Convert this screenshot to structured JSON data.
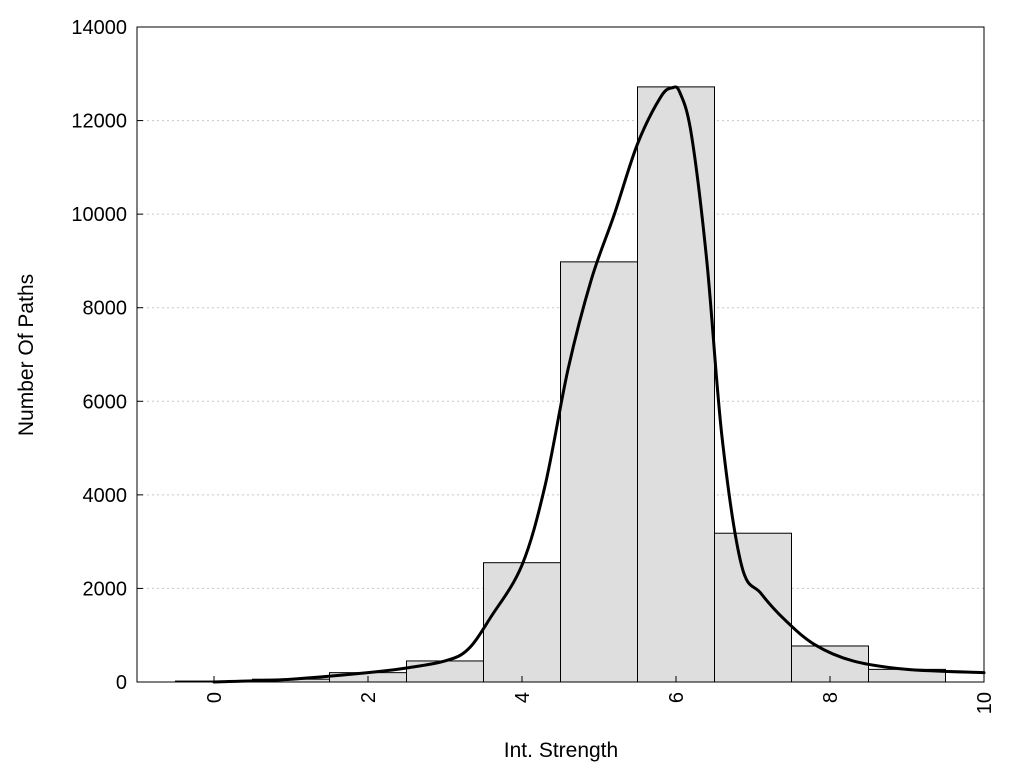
{
  "chart_data": {
    "type": "bar",
    "xlabel": "Int. Strength",
    "ylabel": "Number Of Paths",
    "xlim": [
      -1,
      10
    ],
    "ylim": [
      0,
      14000
    ],
    "x_ticks": [
      0,
      2,
      4,
      6,
      8,
      10
    ],
    "y_ticks": [
      0,
      2000,
      4000,
      6000,
      8000,
      10000,
      12000,
      14000
    ],
    "grid": "horizontal dotted",
    "bar_width": 1,
    "bars": [
      {
        "x": 0,
        "value": 20
      },
      {
        "x": 1,
        "value": 60
      },
      {
        "x": 2,
        "value": 200
      },
      {
        "x": 3,
        "value": 450
      },
      {
        "x": 4,
        "value": 2550
      },
      {
        "x": 5,
        "value": 8980
      },
      {
        "x": 6,
        "value": 12720
      },
      {
        "x": 7,
        "value": 3180
      },
      {
        "x": 8,
        "value": 770
      },
      {
        "x": 9,
        "value": 270
      }
    ],
    "curve": {
      "x": [
        0,
        1,
        2,
        2.5,
        3,
        3.3,
        3.6,
        4,
        4.3,
        4.6,
        4.9,
        5.2,
        5.5,
        5.8,
        5.95,
        6.05,
        6.2,
        6.4,
        6.6,
        6.85,
        7.1,
        7.4,
        7.8,
        8.3,
        9,
        10
      ],
      "y": [
        0,
        60,
        200,
        300,
        450,
        700,
        1400,
        2500,
        4200,
        6700,
        8600,
        10000,
        11500,
        12500,
        12700,
        12600,
        11700,
        9000,
        5200,
        2500,
        1900,
        1350,
        800,
        450,
        270,
        200
      ]
    }
  }
}
